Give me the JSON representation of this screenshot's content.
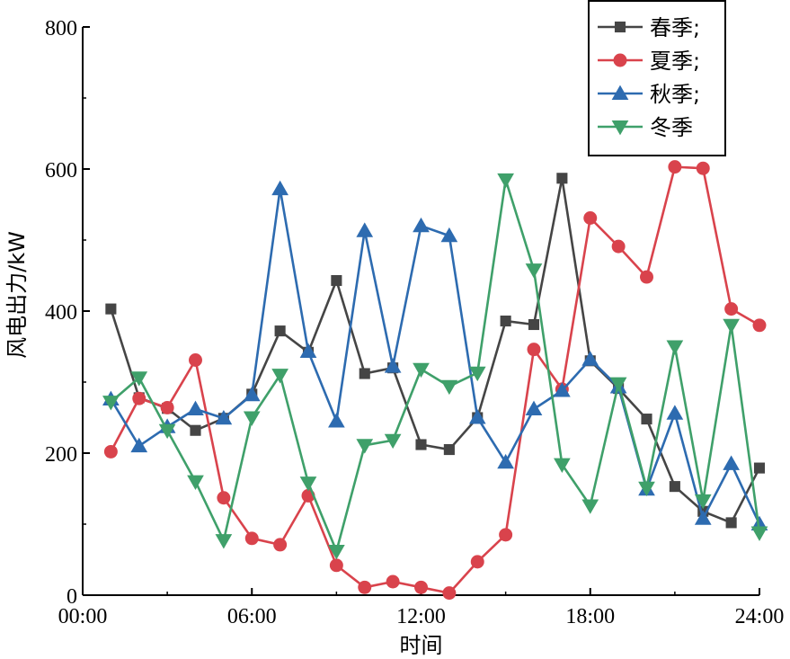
{
  "chart_data": {
    "type": "line",
    "xlabel": "时间",
    "ylabel": "风电出力/kW",
    "xlim": [
      0,
      24
    ],
    "ylim": [
      0,
      800
    ],
    "x_ticks": [
      {
        "value": 0,
        "label": "00:00"
      },
      {
        "value": 6,
        "label": "06:00"
      },
      {
        "value": 12,
        "label": "12:00"
      },
      {
        "value": 18,
        "label": "18:00"
      },
      {
        "value": 24,
        "label": "24:00"
      }
    ],
    "y_ticks": [
      {
        "value": 0,
        "label": "0"
      },
      {
        "value": 200,
        "label": "200"
      },
      {
        "value": 400,
        "label": "400"
      },
      {
        "value": 600,
        "label": "600"
      },
      {
        "value": 800,
        "label": "800"
      }
    ],
    "grid": false,
    "legend_position": "top-right",
    "x": [
      1,
      2,
      3,
      4,
      5,
      6,
      7,
      8,
      9,
      10,
      11,
      12,
      13,
      14,
      15,
      16,
      17,
      18,
      19,
      20,
      21,
      22,
      23,
      24
    ],
    "series": [
      {
        "name": "春季;",
        "color": "#454545",
        "marker": "square",
        "values": [
          403,
          278,
          263,
          232,
          249,
          283,
          372,
          342,
          443,
          312,
          320,
          212,
          205,
          250,
          386,
          381,
          587,
          330,
          291,
          248,
          153,
          118,
          102,
          179
        ]
      },
      {
        "name": "夏季;",
        "color": "#d9434c",
        "marker": "circle",
        "values": [
          202,
          277,
          264,
          331,
          137,
          80,
          71,
          140,
          42,
          11,
          19,
          11,
          3,
          47,
          85,
          346,
          290,
          531,
          491,
          448,
          603,
          601,
          403,
          380
        ]
      },
      {
        "name": "秋季;",
        "color": "#2d6bb0",
        "marker": "triangle-up",
        "values": [
          276,
          210,
          237,
          262,
          249,
          282,
          572,
          343,
          245,
          513,
          322,
          520,
          506,
          250,
          187,
          262,
          288,
          332,
          293,
          149,
          256,
          108,
          185,
          100
        ]
      },
      {
        "name": "冬季",
        "color": "#3fa06a",
        "marker": "triangle-down",
        "values": [
          272,
          306,
          232,
          160,
          77,
          250,
          310,
          158,
          62,
          211,
          218,
          318,
          294,
          313,
          585,
          458,
          184,
          126,
          298,
          151,
          350,
          133,
          380,
          88
        ]
      }
    ]
  }
}
